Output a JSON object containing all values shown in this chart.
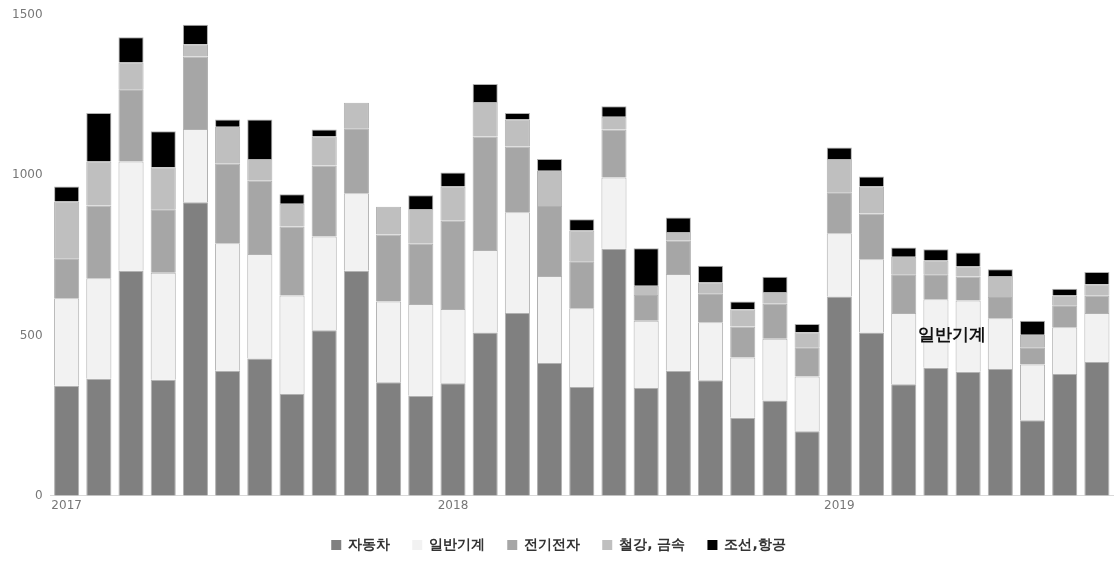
{
  "chart_data": {
    "type": "bar",
    "stacked": true,
    "categories": [
      "2017",
      null,
      null,
      null,
      null,
      null,
      null,
      null,
      null,
      null,
      null,
      null,
      "2018",
      null,
      null,
      null,
      null,
      null,
      null,
      null,
      null,
      null,
      null,
      null,
      "2019",
      null,
      null,
      null,
      null,
      null,
      null,
      null,
      null
    ],
    "series": [
      {
        "name": "자동차",
        "color": "#808080",
        "values": [
          343,
          365,
          702,
          362,
          916,
          390,
          428,
          317,
          516,
          702,
          354,
          312,
          351,
          509,
          570,
          414,
          339,
          771,
          336,
          390,
          360,
          243,
          297,
          201,
          622,
          509,
          348,
          399,
          387,
          395,
          235,
          380,
          417
        ]
      },
      {
        "name": "일반기계",
        "color": "#f2f2f2",
        "values": [
          273,
          314,
          341,
          334,
          229,
          398,
          326,
          308,
          293,
          242,
          252,
          286,
          232,
          258,
          315,
          272,
          246,
          222,
          210,
          302,
          181,
          188,
          193,
          171,
          197,
          229,
          222,
          214,
          222,
          159,
          174,
          146,
          153
        ]
      },
      {
        "name": "전기전자",
        "color": "#a6a6a6",
        "values": [
          125,
          227,
          226,
          198,
          226,
          248,
          229,
          215,
          222,
          203,
          209,
          188,
          275,
          354,
          205,
          218,
          147,
          150,
          80,
          104,
          91,
          97,
          109,
          91,
          128,
          143,
          121,
          78,
          75,
          66,
          54,
          68,
          54
        ]
      },
      {
        "name": "철강, 금속",
        "color": "#bfbfbf",
        "values": [
          177,
          137,
          83,
          131,
          38,
          116,
          68,
          71,
          90,
          80,
          87,
          109,
          107,
          108,
          84,
          110,
          96,
          40,
          29,
          27,
          33,
          54,
          37,
          47,
          104,
          84,
          55,
          43,
          31,
          66,
          39,
          31,
          36
        ]
      },
      {
        "name": "조선,항공",
        "color": "#000000",
        "values": [
          47,
          152,
          79,
          113,
          61,
          22,
          123,
          30,
          22,
          0,
          0,
          43,
          44,
          56,
          21,
          37,
          35,
          33,
          117,
          45,
          53,
          24,
          47,
          26,
          36,
          31,
          29,
          35,
          44,
          21,
          44,
          21,
          38
        ]
      }
    ],
    "ylim": [
      0,
      1500
    ],
    "yticks": [
      0,
      500,
      1000,
      1500
    ],
    "grid": false,
    "legend": "bottom",
    "annotations": [
      {
        "text": "일반기계",
        "y": 500
      }
    ]
  }
}
